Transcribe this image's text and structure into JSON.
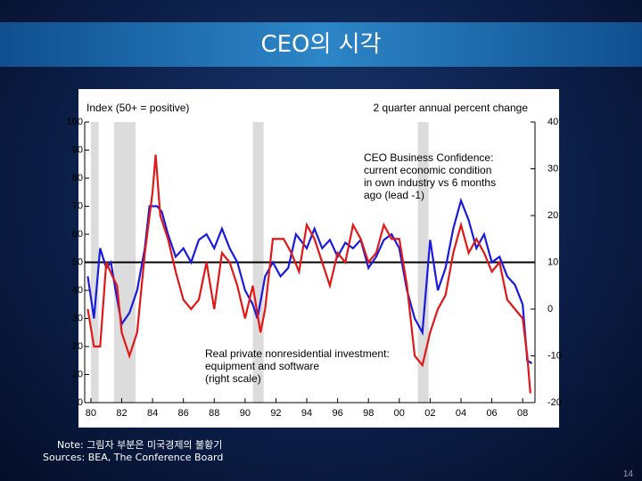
{
  "title": "CEO의 시각",
  "chart_data": {
    "type": "line",
    "left_axis_label": "Index (50+ = positive)",
    "right_axis_label": "2 quarter annual percent change",
    "annotations": [
      [
        "CEO Business Confidence:",
        "current economic condition",
        "in own industry vs 6 months",
        "ago (lead -1)"
      ],
      [
        "Real private nonresidential investment:",
        "equipment and software",
        "(right scale)"
      ]
    ],
    "xlim": [
      1979.6,
      2008.8
    ],
    "xticks": [
      {
        "value": 1980,
        "label": "80"
      },
      {
        "value": 1982,
        "label": "82"
      },
      {
        "value": 1984,
        "label": "84"
      },
      {
        "value": 1986,
        "label": "86"
      },
      {
        "value": 1988,
        "label": "88"
      },
      {
        "value": 1990,
        "label": "90"
      },
      {
        "value": 1992,
        "label": "92"
      },
      {
        "value": 1994,
        "label": "94"
      },
      {
        "value": 1996,
        "label": "96"
      },
      {
        "value": 1998,
        "label": "98"
      },
      {
        "value": 2000,
        "label": "00"
      },
      {
        "value": 2002,
        "label": "02"
      },
      {
        "value": 2004,
        "label": "04"
      },
      {
        "value": 2006,
        "label": "06"
      },
      {
        "value": 2008,
        "label": "08"
      }
    ],
    "ylim": [
      0,
      100
    ],
    "yticks": [
      0,
      10,
      20,
      30,
      40,
      50,
      60,
      70,
      80,
      90,
      100
    ],
    "y2lim": [
      -20,
      40
    ],
    "y2ticks": [
      -20,
      -10,
      0,
      10,
      20,
      30,
      40
    ],
    "reference_line": 50,
    "recessions": [
      [
        1980,
        1980.5
      ],
      [
        1981.5,
        1982.9
      ],
      [
        1990.5,
        1991.2
      ],
      [
        2001.2,
        2001.9
      ]
    ],
    "series": [
      {
        "color": "#1a1adc",
        "axis": "y",
        "x": [
          1979.8,
          1980.2,
          1980.6,
          1981,
          1981.3,
          1981.6,
          1982,
          1982.5,
          1983,
          1983.5,
          1983.8,
          1984.3,
          1984.6,
          1985,
          1985.5,
          1986,
          1986.5,
          1987,
          1987.5,
          1988,
          1988.5,
          1989,
          1989.5,
          1990,
          1990.5,
          1990.8,
          1991.3,
          1991.8,
          1992.3,
          1992.8,
          1993.3,
          1994,
          1994.5,
          1995,
          1995.5,
          1996,
          1996.5,
          1997,
          1997.5,
          1998,
          1998.5,
          1999,
          1999.5,
          2000,
          2000.5,
          2001,
          2001.5,
          2002,
          2002.5,
          2003,
          2003.5,
          2004,
          2004.5,
          2005,
          2005.5,
          2006,
          2006.5,
          2007,
          2007.5,
          2008,
          2008.3,
          2008.6
        ],
        "values": [
          45,
          30,
          55,
          48,
          50,
          40,
          28,
          32,
          40,
          55,
          70,
          70,
          68,
          60,
          52,
          55,
          50,
          58,
          60,
          55,
          62,
          55,
          50,
          40,
          35,
          30,
          45,
          50,
          45,
          48,
          60,
          55,
          62,
          55,
          58,
          52,
          57,
          55,
          58,
          48,
          52,
          58,
          60,
          55,
          40,
          30,
          25,
          58,
          40,
          48,
          62,
          72,
          65,
          55,
          60,
          50,
          52,
          45,
          42,
          35,
          15,
          14
        ]
      },
      {
        "color": "#e01818",
        "axis": "y2",
        "x": [
          1979.8,
          1980.2,
          1980.6,
          1981,
          1981.4,
          1981.7,
          1982,
          1982.5,
          1983,
          1983.5,
          1984,
          1984.2,
          1984.5,
          1985,
          1985.5,
          1986,
          1986.5,
          1987,
          1987.5,
          1988,
          1988.5,
          1989,
          1989.5,
          1990,
          1990.5,
          1991,
          1991.3,
          1991.8,
          1992.5,
          1993,
          1993.5,
          1994,
          1994.5,
          1995,
          1995.5,
          1996,
          1996.5,
          1997,
          1997.5,
          1998,
          1998.5,
          1999,
          1999.5,
          2000,
          2000.5,
          2001,
          2001.5,
          2002,
          2002.5,
          2003,
          2003.5,
          2004,
          2004.5,
          2005,
          2005.5,
          2006,
          2006.5,
          2007,
          2007.5,
          2008,
          2008.3,
          2008.5
        ],
        "values": [
          0,
          -8,
          -8,
          10,
          7,
          5,
          -5,
          -10,
          -5,
          12,
          25,
          33,
          20,
          15,
          8,
          2,
          0,
          2,
          10,
          0,
          12,
          10,
          5,
          -2,
          5,
          -5,
          0,
          15,
          15,
          12,
          8,
          18,
          15,
          10,
          5,
          12,
          10,
          18,
          15,
          10,
          12,
          18,
          15,
          15,
          5,
          -10,
          -12,
          -5,
          0,
          3,
          12,
          18,
          12,
          15,
          12,
          8,
          10,
          2,
          0,
          -2,
          -10,
          -18
        ]
      }
    ]
  },
  "note": "Note: 그림자 부분은 미국경제의 불황기",
  "sources": "Sources: BEA, The Conference Board",
  "page_number": "14"
}
